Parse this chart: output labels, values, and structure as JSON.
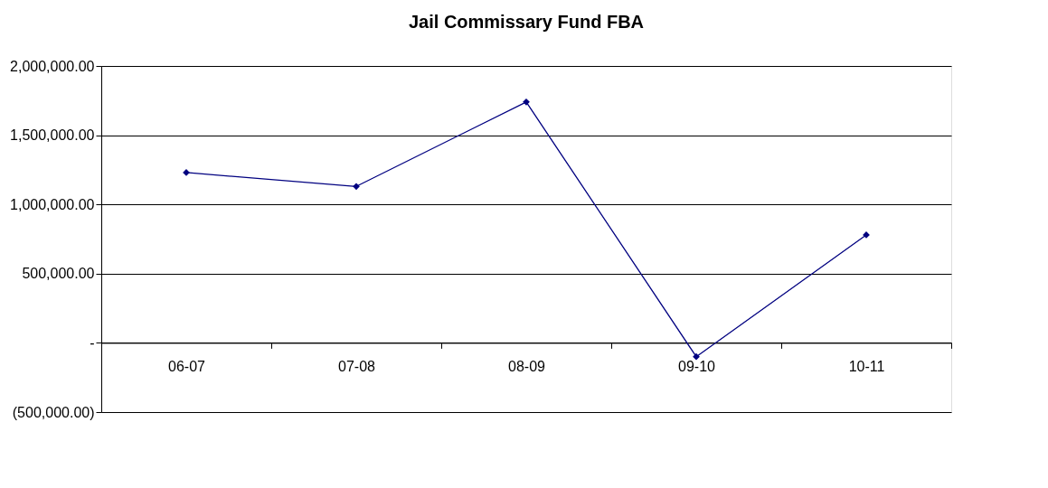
{
  "chart_data": {
    "type": "line",
    "title": "Jail Commissary Fund FBA",
    "categories": [
      "06-07",
      "07-08",
      "08-09",
      "09-10",
      "10-11"
    ],
    "series": [
      {
        "color": "#000080",
        "values": [
          1230000,
          1130000,
          1740000,
          -100000,
          780000
        ]
      }
    ],
    "ylim": [
      -500000,
      2000000
    ],
    "yticks": [
      {
        "value": -500000,
        "label": "(500,000.00)"
      },
      {
        "value": 0,
        "label": "-"
      },
      {
        "value": 500000,
        "label": "500,000.00"
      },
      {
        "value": 1000000,
        "label": "1,000,000.00"
      },
      {
        "value": 1500000,
        "label": "1,500,000.00"
      },
      {
        "value": 2000000,
        "label": "2,000,000.00"
      }
    ],
    "grid": "y",
    "marker": "diamond",
    "line_style": "solid",
    "legend": false
  }
}
